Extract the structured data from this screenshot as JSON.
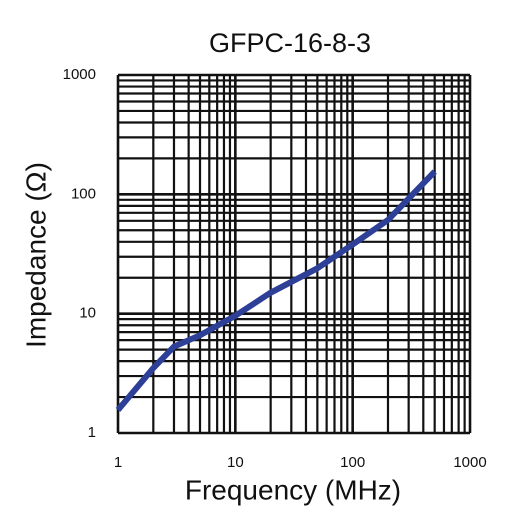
{
  "chart_data": {
    "type": "line",
    "title": "GFPC-16-8-3",
    "x_label": "Frequency (MHz)",
    "y_label": "Impedance (Ω)",
    "x": [
      1,
      2,
      3,
      5,
      10,
      20,
      50,
      100,
      200,
      500
    ],
    "series": [
      {
        "name": "GFPC-16-8-3",
        "color": "#2e3f98",
        "values": [
          1.56,
          3.5,
          5.3,
          6.6,
          9.6,
          15,
          24,
          38,
          61,
          155
        ]
      }
    ],
    "xlog": true,
    "ylog": true,
    "grid": true,
    "xlim": [
      1,
      1000
    ],
    "ylim": [
      1,
      1000
    ],
    "xticks": [
      1,
      10,
      100,
      1000
    ],
    "yticks": [
      1,
      10,
      100,
      1000
    ],
    "xminorticks": [
      2,
      3,
      4,
      5,
      6,
      7,
      8,
      9,
      20,
      30,
      40,
      50,
      60,
      70,
      80,
      90,
      200,
      300,
      400,
      500,
      600,
      700,
      800,
      900
    ],
    "yminorticks": [
      2,
      3,
      4,
      5,
      6,
      7,
      8,
      9,
      20,
      30,
      40,
      50,
      60,
      70,
      80,
      90,
      200,
      300,
      400,
      500,
      600,
      700,
      800,
      900
    ]
  }
}
